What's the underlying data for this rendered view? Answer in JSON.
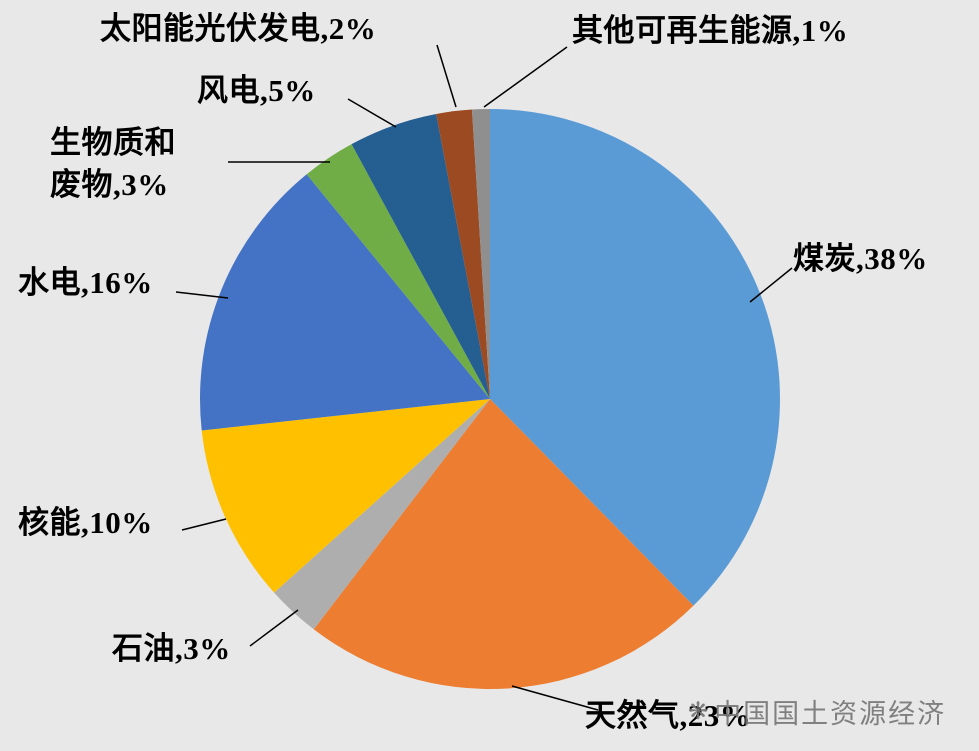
{
  "background_color": "#e8e8e8",
  "chart_data": {
    "type": "pie",
    "title": "",
    "start_angle_deg": 0,
    "direction": "clockwise",
    "legend_position": "none (leader-line callout labels)",
    "total_percent_labeled": 101,
    "slices": [
      {
        "id": "coal",
        "label": "煤炭",
        "value": 38,
        "display": "煤炭,38%",
        "color": "#5b9bd5"
      },
      {
        "id": "natural-gas",
        "label": "天然气",
        "value": 23,
        "display": "天然气,23%",
        "color": "#ed7d31"
      },
      {
        "id": "oil",
        "label": "石油",
        "value": 3,
        "display": "石油,3%",
        "color": "#aeaeae"
      },
      {
        "id": "nuclear",
        "label": "核能",
        "value": 10,
        "display": "核能,10%",
        "color": "#ffc000"
      },
      {
        "id": "hydro",
        "label": "水电",
        "value": 16,
        "display": "水电,16%",
        "color": "#4472c4"
      },
      {
        "id": "biomass-waste",
        "label": "生物质和废物",
        "value": 3,
        "display": "生物质和\n废物,3%",
        "color": "#70ad47"
      },
      {
        "id": "wind",
        "label": "风电",
        "value": 5,
        "display": "风电,5%",
        "color": "#255e91"
      },
      {
        "id": "solar-pv",
        "label": "太阳能光伏发电",
        "value": 2,
        "display": "太阳能光伏发电,2%",
        "color": "#9c4a22"
      },
      {
        "id": "other-renewables",
        "label": "其他可再生能源",
        "value": 1,
        "display": "其他可再生能源,1%",
        "color": "#8f8f8f"
      }
    ]
  },
  "watermark": {
    "logo": "❋",
    "text": "中国国土资源经济"
  }
}
